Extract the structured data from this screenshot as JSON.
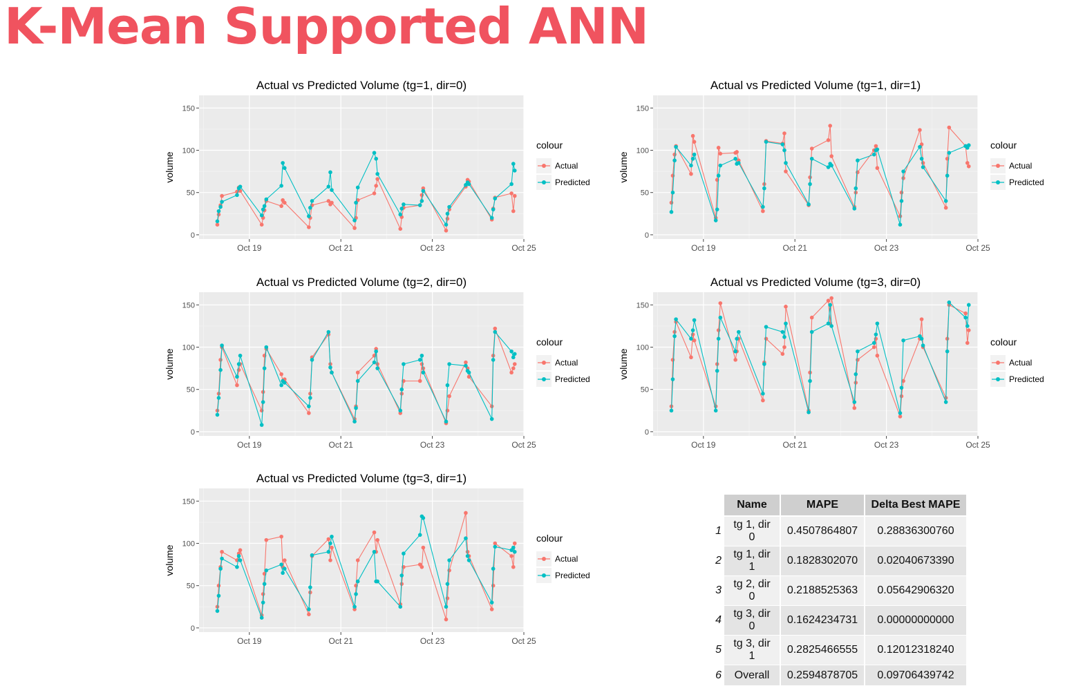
{
  "page_title": "K-Mean Supported ANN",
  "shared": {
    "ylabel": "volume",
    "legend_title": "colour",
    "x_ticks": [
      "Oct 19",
      "Oct 21",
      "Oct 23",
      "Oct 25"
    ],
    "y_ticks": [
      "0",
      "50",
      "100",
      "150"
    ],
    "colors": {
      "actual": "#f8766d",
      "predicted": "#00bfc4",
      "panel": "#ebebeb",
      "grid": "#ffffff"
    }
  },
  "chart_data": [
    {
      "type": "line",
      "title": "Actual vs Predicted Volume (tg=1, dir=0)",
      "xlabel": "",
      "ylabel": "volume",
      "x_unit": "day of October 2016 (fractional)",
      "xlim": [
        17.9,
        25
      ],
      "ylim": [
        -5,
        165
      ],
      "legend": "right",
      "series": [
        {
          "name": "Actual",
          "x": [
            18.3,
            18.33,
            18.37,
            18.4,
            18.73,
            18.77,
            18.8,
            19.27,
            19.3,
            19.33,
            19.37,
            19.7,
            19.73,
            19.77,
            20.3,
            20.33,
            20.37,
            20.73,
            20.77,
            20.8,
            21.3,
            21.33,
            21.37,
            21.73,
            21.77,
            21.8,
            22.3,
            22.33,
            22.37,
            22.73,
            22.77,
            22.8,
            23.3,
            23.33,
            23.37,
            23.73,
            23.77,
            23.8,
            24.3,
            24.33,
            24.37,
            24.73,
            24.77,
            24.8
          ],
          "y": [
            12,
            24,
            35,
            46,
            51,
            56,
            52,
            12,
            20,
            29,
            40,
            34,
            41,
            38,
            9,
            20,
            35,
            40,
            36,
            38,
            8,
            20,
            41,
            49,
            58,
            66,
            7,
            21,
            32,
            35,
            47,
            55,
            5,
            19,
            30,
            57,
            65,
            63,
            18,
            31,
            44,
            49,
            28,
            46
          ]
        },
        {
          "name": "Predicted",
          "x": [
            18.3,
            18.33,
            18.37,
            18.4,
            18.73,
            18.77,
            18.8,
            19.27,
            19.3,
            19.33,
            19.37,
            19.7,
            19.73,
            19.77,
            20.3,
            20.33,
            20.37,
            20.73,
            20.77,
            20.8,
            21.3,
            21.33,
            21.37,
            21.73,
            21.77,
            21.8,
            22.3,
            22.33,
            22.37,
            22.73,
            22.77,
            22.8,
            23.3,
            23.33,
            23.37,
            23.73,
            23.77,
            23.8,
            24.3,
            24.33,
            24.37,
            24.73,
            24.77,
            24.8
          ],
          "y": [
            16,
            28,
            33,
            39,
            47,
            55,
            57,
            23,
            30,
            34,
            42,
            58,
            85,
            79,
            22,
            32,
            40,
            57,
            74,
            53,
            17,
            38,
            56,
            97,
            90,
            72,
            24,
            31,
            36,
            35,
            40,
            52,
            12,
            25,
            33,
            59,
            62,
            60,
            20,
            30,
            43,
            60,
            84,
            76
          ]
        }
      ]
    },
    {
      "type": "line",
      "title": "Actual vs Predicted Volume (tg=1, dir=1)",
      "xlabel": "",
      "ylabel": "volume",
      "x_unit": "day of October 2016 (fractional)",
      "xlim": [
        17.9,
        25
      ],
      "ylim": [
        -5,
        165
      ],
      "legend": "right",
      "series": [
        {
          "name": "Actual",
          "x": [
            18.3,
            18.33,
            18.37,
            18.4,
            18.73,
            18.77,
            18.8,
            19.27,
            19.3,
            19.33,
            19.37,
            19.7,
            19.73,
            19.77,
            20.3,
            20.33,
            20.37,
            20.73,
            20.77,
            20.8,
            21.3,
            21.33,
            21.37,
            21.73,
            21.77,
            21.8,
            22.3,
            22.33,
            22.37,
            22.73,
            22.77,
            22.8,
            23.3,
            23.33,
            23.37,
            23.73,
            23.77,
            23.8,
            24.3,
            24.33,
            24.37,
            24.73,
            24.77,
            24.8
          ],
          "y": [
            38,
            70,
            95,
            105,
            72,
            117,
            110,
            20,
            65,
            103,
            96,
            97,
            98,
            88,
            28,
            60,
            111,
            108,
            120,
            75,
            35,
            68,
            102,
            112,
            129,
            93,
            33,
            50,
            74,
            100,
            105,
            79,
            22,
            50,
            67,
            124,
            107,
            85,
            32,
            90,
            127,
            105,
            85,
            81
          ]
        },
        {
          "name": "Predicted",
          "x": [
            18.3,
            18.33,
            18.37,
            18.4,
            18.73,
            18.77,
            18.8,
            19.27,
            19.3,
            19.33,
            19.37,
            19.7,
            19.73,
            19.77,
            20.3,
            20.33,
            20.37,
            20.73,
            20.77,
            20.8,
            21.3,
            21.33,
            21.37,
            21.73,
            21.77,
            21.8,
            22.3,
            22.33,
            22.37,
            22.73,
            22.77,
            22.8,
            23.3,
            23.33,
            23.37,
            23.73,
            23.77,
            23.8,
            24.3,
            24.33,
            24.37,
            24.73,
            24.77,
            24.8
          ],
          "y": [
            27,
            50,
            88,
            104,
            82,
            90,
            95,
            17,
            30,
            70,
            82,
            90,
            84,
            85,
            33,
            55,
            110,
            107,
            100,
            85,
            36,
            60,
            90,
            80,
            84,
            82,
            31,
            55,
            88,
            95,
            100,
            101,
            12,
            40,
            75,
            104,
            90,
            80,
            40,
            70,
            97,
            105,
            103,
            106
          ]
        }
      ]
    },
    {
      "type": "line",
      "title": "Actual vs Predicted Volume (tg=2, dir=0)",
      "xlabel": "",
      "ylabel": "volume",
      "x_unit": "day of October 2016 (fractional)",
      "xlim": [
        17.9,
        25
      ],
      "ylim": [
        -5,
        165
      ],
      "legend": "right",
      "series": [
        {
          "name": "Actual",
          "x": [
            18.3,
            18.33,
            18.37,
            18.4,
            18.73,
            18.77,
            18.8,
            19.27,
            19.3,
            19.33,
            19.37,
            19.7,
            19.73,
            19.77,
            20.3,
            20.33,
            20.37,
            20.73,
            20.77,
            20.8,
            21.3,
            21.33,
            21.37,
            21.73,
            21.77,
            21.8,
            22.3,
            22.33,
            22.37,
            22.73,
            22.77,
            22.8,
            23.3,
            23.33,
            23.37,
            23.73,
            23.77,
            23.8,
            24.3,
            24.33,
            24.37,
            24.73,
            24.77,
            24.8
          ],
          "y": [
            25,
            45,
            85,
            100,
            55,
            73,
            80,
            25,
            47,
            90,
            98,
            68,
            60,
            62,
            22,
            45,
            88,
            115,
            80,
            70,
            15,
            30,
            70,
            90,
            98,
            80,
            22,
            45,
            60,
            60,
            80,
            75,
            10,
            25,
            42,
            82,
            75,
            65,
            30,
            90,
            122,
            70,
            75,
            80
          ]
        },
        {
          "name": "Predicted",
          "x": [
            18.3,
            18.33,
            18.37,
            18.4,
            18.73,
            18.77,
            18.8,
            19.27,
            19.3,
            19.33,
            19.37,
            19.7,
            19.73,
            19.77,
            20.3,
            20.33,
            20.37,
            20.73,
            20.77,
            20.8,
            21.3,
            21.33,
            21.37,
            21.73,
            21.77,
            21.8,
            22.3,
            22.33,
            22.37,
            22.73,
            22.77,
            22.8,
            23.3,
            23.33,
            23.37,
            23.73,
            23.77,
            23.8,
            24.3,
            24.33,
            24.37,
            24.73,
            24.77,
            24.8
          ],
          "y": [
            20,
            40,
            73,
            102,
            65,
            80,
            90,
            8,
            35,
            75,
            100,
            55,
            60,
            58,
            30,
            40,
            85,
            118,
            76,
            70,
            12,
            28,
            60,
            82,
            95,
            75,
            25,
            50,
            80,
            85,
            90,
            70,
            12,
            55,
            80,
            78,
            72,
            70,
            15,
            85,
            118,
            95,
            88,
            92
          ]
        }
      ]
    },
    {
      "type": "line",
      "title": "Actual vs Predicted Volume (tg=3, dir=0)",
      "xlabel": "",
      "ylabel": "volume",
      "x_unit": "day of October 2016 (fractional)",
      "xlim": [
        17.9,
        25
      ],
      "ylim": [
        -5,
        165
      ],
      "legend": "right",
      "series": [
        {
          "name": "Actual",
          "x": [
            18.3,
            18.33,
            18.37,
            18.4,
            18.73,
            18.77,
            18.8,
            19.27,
            19.3,
            19.33,
            19.37,
            19.7,
            19.73,
            19.77,
            20.3,
            20.33,
            20.37,
            20.73,
            20.77,
            20.8,
            21.3,
            21.33,
            21.37,
            21.73,
            21.77,
            21.8,
            22.3,
            22.33,
            22.37,
            22.73,
            22.77,
            22.8,
            23.3,
            23.33,
            23.37,
            23.73,
            23.77,
            23.8,
            24.3,
            24.33,
            24.37,
            24.73,
            24.77,
            24.8
          ],
          "y": [
            30,
            85,
            118,
            130,
            88,
            115,
            108,
            30,
            80,
            120,
            152,
            85,
            95,
            110,
            37,
            82,
            110,
            92,
            100,
            148,
            25,
            70,
            135,
            155,
            128,
            158,
            28,
            58,
            85,
            100,
            110,
            90,
            18,
            42,
            60,
            110,
            133,
            100,
            40,
            110,
            150,
            140,
            105,
            120
          ]
        },
        {
          "name": "Predicted",
          "x": [
            18.3,
            18.33,
            18.37,
            18.4,
            18.73,
            18.77,
            18.8,
            19.27,
            19.3,
            19.33,
            19.37,
            19.7,
            19.73,
            19.77,
            20.3,
            20.33,
            20.37,
            20.73,
            20.77,
            20.8,
            21.3,
            21.33,
            21.37,
            21.73,
            21.77,
            21.8,
            22.3,
            22.33,
            22.37,
            22.73,
            22.77,
            22.8,
            23.3,
            23.33,
            23.37,
            23.73,
            23.77,
            23.8,
            24.3,
            24.33,
            24.37,
            24.73,
            24.77,
            24.8
          ],
          "y": [
            25,
            62,
            113,
            133,
            110,
            120,
            132,
            25,
            72,
            110,
            135,
            95,
            110,
            118,
            45,
            80,
            124,
            118,
            112,
            128,
            23,
            60,
            118,
            128,
            150,
            125,
            35,
            68,
            95,
            105,
            115,
            128,
            22,
            52,
            108,
            113,
            110,
            102,
            35,
            95,
            153,
            135,
            125,
            150
          ]
        }
      ]
    },
    {
      "type": "line",
      "title": "Actual vs Predicted Volume (tg=3, dir=1)",
      "xlabel": "",
      "ylabel": "volume",
      "x_unit": "day of October 2016 (fractional)",
      "xlim": [
        17.9,
        25
      ],
      "ylim": [
        -5,
        165
      ],
      "legend": "right",
      "series": [
        {
          "name": "Actual",
          "x": [
            18.3,
            18.33,
            18.37,
            18.4,
            18.73,
            18.77,
            18.8,
            19.27,
            19.3,
            19.33,
            19.37,
            19.7,
            19.73,
            19.77,
            20.3,
            20.33,
            20.37,
            20.73,
            20.77,
            20.8,
            21.3,
            21.33,
            21.37,
            21.73,
            21.77,
            21.8,
            22.3,
            22.33,
            22.37,
            22.73,
            22.77,
            22.8,
            23.3,
            23.33,
            23.37,
            23.73,
            23.77,
            23.8,
            24.3,
            24.33,
            24.37,
            24.73,
            24.77,
            24.8
          ],
          "y": [
            25,
            50,
            72,
            90,
            80,
            88,
            92,
            15,
            40,
            64,
            104,
            108,
            72,
            80,
            16,
            42,
            85,
            105,
            80,
            95,
            22,
            50,
            80,
            113,
            90,
            104,
            28,
            52,
            72,
            75,
            72,
            95,
            10,
            35,
            68,
            136,
            90,
            85,
            22,
            50,
            100,
            85,
            72,
            100
          ]
        },
        {
          "name": "Predicted",
          "x": [
            18.3,
            18.33,
            18.37,
            18.4,
            18.73,
            18.77,
            18.8,
            19.27,
            19.3,
            19.33,
            19.37,
            19.7,
            19.73,
            19.77,
            20.3,
            20.33,
            20.37,
            20.73,
            20.77,
            20.8,
            21.3,
            21.33,
            21.37,
            21.73,
            21.77,
            21.8,
            22.3,
            22.33,
            22.37,
            22.73,
            22.77,
            22.8,
            23.3,
            23.33,
            23.37,
            23.73,
            23.77,
            23.8,
            24.3,
            24.33,
            24.37,
            24.73,
            24.77,
            24.8
          ],
          "y": [
            20,
            38,
            70,
            82,
            72,
            85,
            80,
            12,
            30,
            52,
            68,
            75,
            65,
            70,
            22,
            48,
            86,
            90,
            100,
            108,
            25,
            40,
            55,
            90,
            55,
            55,
            25,
            62,
            88,
            110,
            132,
            130,
            25,
            52,
            80,
            106,
            85,
            80,
            30,
            70,
            96,
            92,
            95,
            90
          ]
        }
      ]
    },
    {
      "type": "table",
      "columns": [
        "Name",
        "MAPE",
        "Delta Best MAPE"
      ],
      "rows": [
        {
          "n": "1",
          "name": "tg 1, dir 0",
          "mape": "0.4507864807",
          "delta": "0.28836300760"
        },
        {
          "n": "2",
          "name": "tg 1, dir 1",
          "mape": "0.1828302070",
          "delta": "0.02040673390"
        },
        {
          "n": "3",
          "name": "tg 2, dir 0",
          "mape": "0.2188525363",
          "delta": "0.05642906320"
        },
        {
          "n": "4",
          "name": "tg 3, dir 0",
          "mape": "0.1624234731",
          "delta": "0.00000000000"
        },
        {
          "n": "5",
          "name": "tg 3, dir 1",
          "mape": "0.2825466555",
          "delta": "0.12012318240"
        },
        {
          "n": "6",
          "name": "Overall",
          "mape": "0.2594878705",
          "delta": "0.09706439742"
        }
      ]
    }
  ]
}
